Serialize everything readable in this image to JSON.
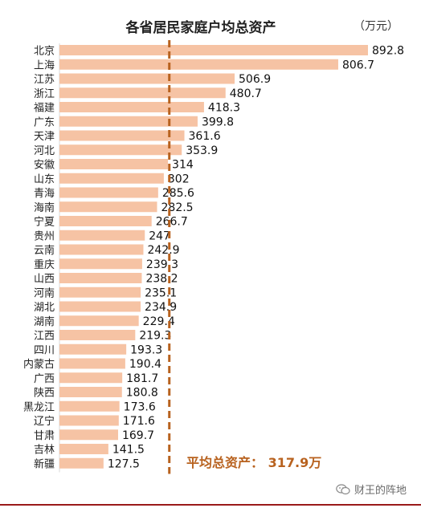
{
  "chart_data": {
    "type": "bar",
    "orientation": "horizontal",
    "title": "各省居民家庭户均总资产",
    "unit": "（万元）",
    "categories": [
      "北京",
      "上海",
      "江苏",
      "浙江",
      "福建",
      "广东",
      "天津",
      "河北",
      "安徽",
      "山东",
      "青海",
      "海南",
      "宁夏",
      "贵州",
      "云南",
      "重庆",
      "山西",
      "河南",
      "湖北",
      "湖南",
      "江西",
      "四川",
      "内蒙古",
      "广西",
      "陕西",
      "黑龙江",
      "辽宁",
      "甘肃",
      "吉林",
      "新疆"
    ],
    "values": [
      892.8,
      806.7,
      506.9,
      480.7,
      418.3,
      399.8,
      361.6,
      353.9,
      314,
      302,
      285.6,
      282.5,
      266.7,
      247,
      242.9,
      239.3,
      238.2,
      235.1,
      234.9,
      229.4,
      219.3,
      193.3,
      190.4,
      181.7,
      180.8,
      173.6,
      171.6,
      169.7,
      141.5,
      127.5
    ],
    "value_labels": [
      "892.8",
      "806.7",
      "506.9",
      "480.7",
      "418.3",
      "399.8",
      "361.6",
      "353.9",
      "314",
      "302",
      "285.6",
      "282.5",
      "266.7",
      "247",
      "242.9",
      "239.3",
      "238.2",
      "235.1",
      "234.9",
      "229.4",
      "219.3",
      "193.3",
      "190.4",
      "181.7",
      "180.8",
      "173.6",
      "171.6",
      "169.7",
      "141.5",
      "127.5"
    ],
    "average": {
      "label": "平均总资产：",
      "value": 317.9,
      "value_text": "317.9万"
    },
    "bar_color": "#f6c3a4",
    "average_line_color": "#b8621f",
    "average_text_color": "#b8621f",
    "grid": false,
    "legend": "none"
  },
  "watermark": {
    "icon": "wechat-icon",
    "text": "财王的阵地"
  }
}
